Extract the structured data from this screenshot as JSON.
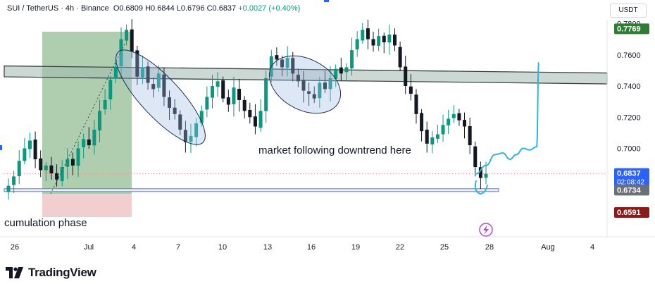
{
  "header": {
    "symbol": "SUI / TetherUS · 4h · Binance",
    "open": "O0.6809",
    "high": "H0.6844",
    "low": "L0.6796",
    "close": "C0.6837",
    "change": "+0.0027 (+0.40%)"
  },
  "currency_label": "USDT",
  "footer": {
    "logo_text": "TradingView"
  },
  "colors": {
    "up": "#089981",
    "down": "#131722",
    "zone_fill": "#a3b8ae",
    "accum_green": "#3d8b40",
    "accum_red": "#e6a5a8",
    "ellipse": "#9fb9e4",
    "projection": "#2ab8d6",
    "current_badge": "#2962ff",
    "target_badge": "#2e7d32",
    "low_badge": "#8b1a1a"
  },
  "chart_data": {
    "type": "candlestick",
    "x_ticks": [
      "26",
      "Jul",
      "4",
      "7",
      "10",
      "13",
      "16",
      "19",
      "22",
      "25",
      "28",
      "Aug",
      "4"
    ],
    "y_ticks": [
      "0.7000",
      "0.7200",
      "0.7400",
      "0.7600",
      "0.7800"
    ],
    "ylim": [
      0.65,
      0.79
    ],
    "price_labels": [
      {
        "value": 0.7769,
        "text": "0.7769",
        "role": "target"
      },
      {
        "value": 0.6837,
        "text": "0.6837",
        "sub": "02:08:42",
        "role": "current"
      },
      {
        "value": 0.6734,
        "text": "0.6734",
        "role": "support"
      },
      {
        "value": 0.6591,
        "text": "0.6591",
        "role": "low"
      }
    ],
    "resistance_zone": [
      0.7445,
      0.7515
    ],
    "support_line": 0.6732,
    "annotations": [
      {
        "text": "market following downtrend here"
      },
      {
        "text": "cumulation phase"
      }
    ],
    "close_path": [
      0.676,
      0.682,
      0.692,
      0.7,
      0.705,
      0.693,
      0.686,
      0.689,
      0.684,
      0.68,
      0.688,
      0.693,
      0.689,
      0.7,
      0.706,
      0.702,
      0.712,
      0.724,
      0.731,
      0.744,
      0.752,
      0.77,
      0.776,
      0.762,
      0.746,
      0.752,
      0.742,
      0.738,
      0.748,
      0.733,
      0.726,
      0.722,
      0.712,
      0.704,
      0.708,
      0.716,
      0.724,
      0.733,
      0.74,
      0.743,
      0.732,
      0.728,
      0.739,
      0.731,
      0.724,
      0.72,
      0.714,
      0.724,
      0.745,
      0.759,
      0.757,
      0.752,
      0.758,
      0.748,
      0.743,
      0.737,
      0.735,
      0.732,
      0.742,
      0.738,
      0.745,
      0.751,
      0.748,
      0.752,
      0.763,
      0.77,
      0.776,
      0.77,
      0.766,
      0.772,
      0.768,
      0.773,
      0.766,
      0.752,
      0.74,
      0.735,
      0.722,
      0.711,
      0.703,
      0.707,
      0.709,
      0.715,
      0.719,
      0.722,
      0.718,
      0.714,
      0.702,
      0.688,
      0.681,
      0.6837
    ],
    "projection_path": [
      0.6837,
      0.689,
      0.696,
      0.697,
      0.693,
      0.696,
      0.7,
      0.699,
      0.701,
      0.755
    ]
  }
}
